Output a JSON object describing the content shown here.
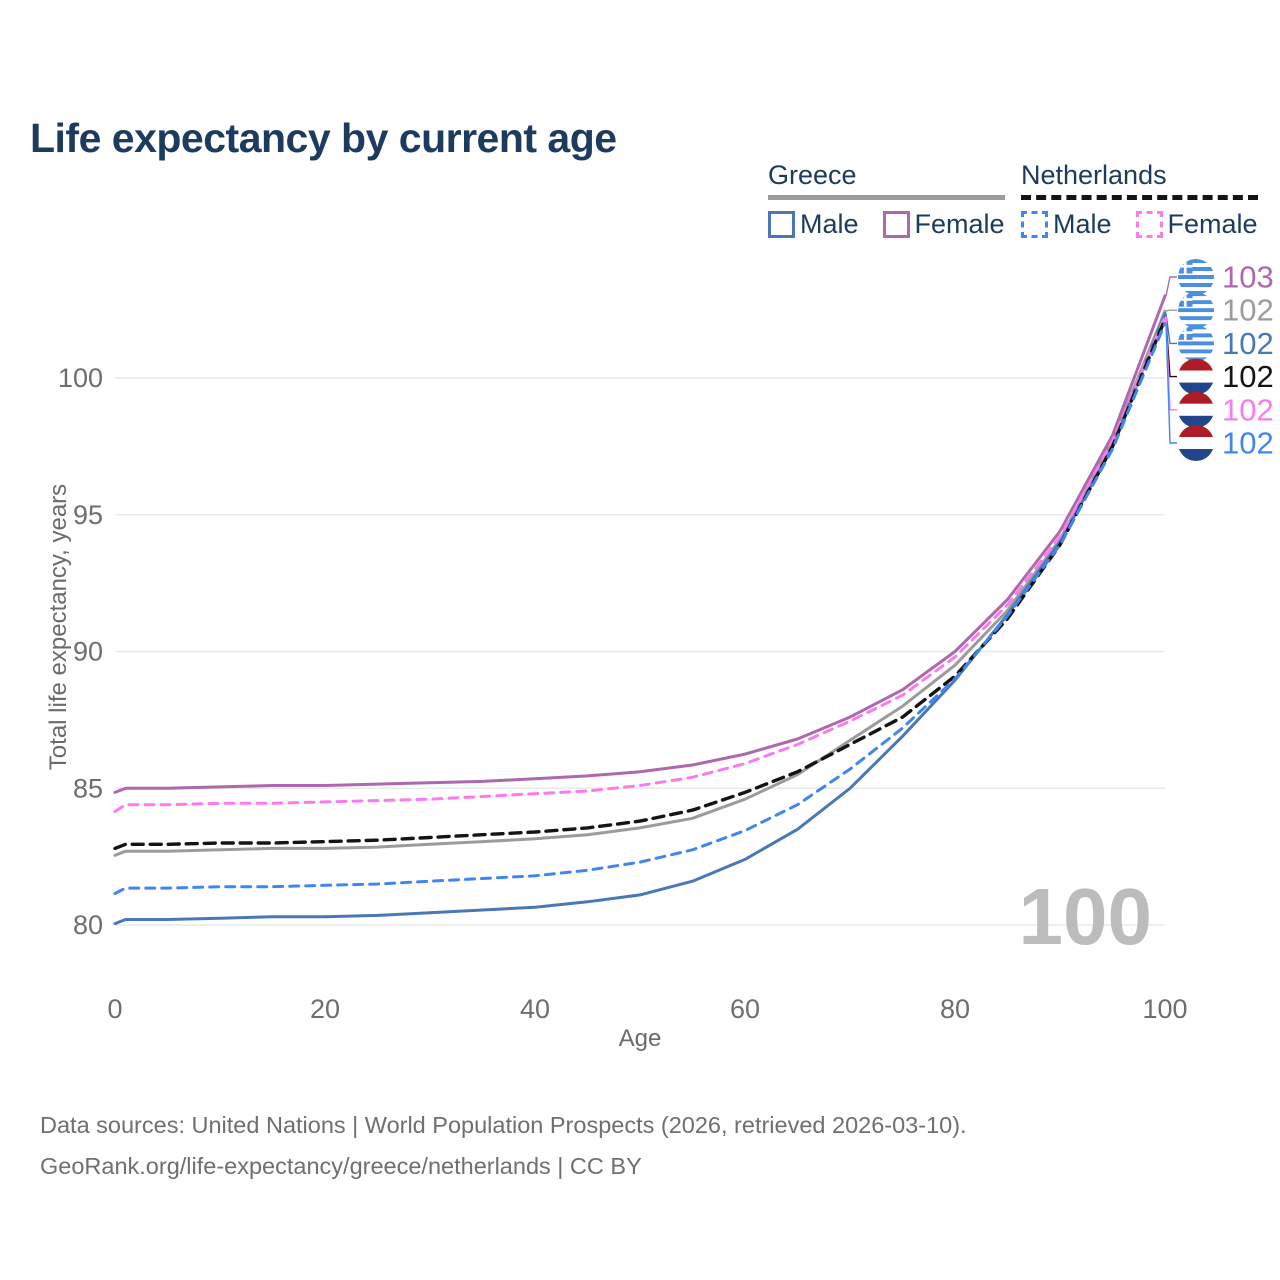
{
  "title": "Life expectancy by current age",
  "legend": {
    "greece": {
      "label": "Greece",
      "male_label": "Male",
      "female_label": "Female"
    },
    "netherlands": {
      "label": "Netherlands",
      "male_label": "Male",
      "female_label": "Female"
    }
  },
  "colors": {
    "navy": "#1d3a5f",
    "axis_text": "#6e6e6e",
    "grid": "#e9e9e9",
    "watermark": "#bcbcbc",
    "greece_male": "#4a78b5",
    "greece_female": "#ad68ae",
    "greece_total": "#9b9b9b",
    "netherlands_male": "#4186f0",
    "netherlands_female": "#fa7bec",
    "netherlands_total": "#141414",
    "flag_greece_blue": "#4a8fe2",
    "flag_nl_red": "#ae1c28",
    "flag_nl_blue": "#21468b"
  },
  "chart_data": {
    "type": "line",
    "title": "Life expectancy by current age",
    "xlabel": "Age",
    "ylabel": "Total life expectancy, years",
    "xlim": [
      0,
      100
    ],
    "ylim": [
      79.5,
      103.5
    ],
    "xticks": [
      0,
      20,
      40,
      60,
      80,
      100
    ],
    "yticks": [
      80,
      85,
      90,
      95,
      100
    ],
    "grid": "horizontal",
    "legend_position": "top-right",
    "watermark": "100",
    "ages": [
      0,
      1,
      5,
      10,
      15,
      20,
      25,
      30,
      35,
      40,
      45,
      50,
      55,
      60,
      65,
      70,
      75,
      80,
      85,
      90,
      95,
      100
    ],
    "series": [
      {
        "id": "greece_total",
        "name": "Greece",
        "country": "Greece",
        "sex": "Both",
        "style": "solid",
        "values": [
          82.55,
          82.7,
          82.7,
          82.75,
          82.8,
          82.8,
          82.85,
          82.95,
          83.05,
          83.15,
          83.3,
          83.55,
          83.9,
          84.6,
          85.5,
          86.75,
          88.0,
          89.5,
          91.5,
          94.1,
          97.7,
          102.45
        ]
      },
      {
        "id": "greece_female",
        "name": "Greece Female",
        "country": "Greece",
        "sex": "Female",
        "style": "solid",
        "values": [
          84.85,
          85.0,
          85.0,
          85.05,
          85.1,
          85.1,
          85.15,
          85.2,
          85.25,
          85.35,
          85.45,
          85.6,
          85.85,
          86.25,
          86.8,
          87.6,
          88.6,
          90.0,
          91.9,
          94.4,
          97.9,
          103.0
        ]
      },
      {
        "id": "greece_male",
        "name": "Greece Male",
        "country": "Greece",
        "sex": "Male",
        "style": "solid",
        "values": [
          80.05,
          80.2,
          80.2,
          80.25,
          80.3,
          80.3,
          80.35,
          80.45,
          80.55,
          80.65,
          80.85,
          81.1,
          81.6,
          82.4,
          83.5,
          85.0,
          86.9,
          88.95,
          91.35,
          94.0,
          97.5,
          102.35
        ]
      },
      {
        "id": "netherlands_female",
        "name": "Netherlands Female",
        "country": "Netherlands",
        "sex": "Female",
        "style": "dashed",
        "values": [
          84.15,
          84.4,
          84.4,
          84.45,
          84.45,
          84.5,
          84.55,
          84.6,
          84.7,
          84.8,
          84.9,
          85.1,
          85.4,
          85.9,
          86.6,
          87.45,
          88.4,
          89.8,
          91.7,
          94.2,
          97.7,
          102.25
        ]
      },
      {
        "id": "netherlands_total",
        "name": "Netherlands",
        "country": "Netherlands",
        "sex": "Both",
        "style": "dashed",
        "values": [
          82.8,
          82.95,
          82.95,
          83.0,
          83.0,
          83.05,
          83.1,
          83.2,
          83.3,
          83.4,
          83.55,
          83.8,
          84.2,
          84.85,
          85.6,
          86.6,
          87.6,
          89.1,
          91.2,
          93.9,
          97.5,
          102.15
        ]
      },
      {
        "id": "netherlands_male",
        "name": "Netherlands Male",
        "country": "Netherlands",
        "sex": "Male",
        "style": "dashed",
        "values": [
          81.15,
          81.35,
          81.35,
          81.4,
          81.4,
          81.45,
          81.5,
          81.6,
          81.7,
          81.8,
          82.0,
          82.3,
          82.75,
          83.45,
          84.4,
          85.7,
          87.2,
          89.0,
          91.3,
          93.9,
          97.4,
          102.0
        ]
      }
    ],
    "end_labels": [
      {
        "series": "greece_female",
        "text": "103",
        "flag": "greece"
      },
      {
        "series": "greece_total",
        "text": "102",
        "flag": "greece"
      },
      {
        "series": "greece_male",
        "text": "102",
        "flag": "greece"
      },
      {
        "series": "netherlands_total",
        "text": "102",
        "flag": "netherlands"
      },
      {
        "series": "netherlands_female",
        "text": "102",
        "flag": "netherlands"
      },
      {
        "series": "netherlands_male",
        "text": "102",
        "flag": "netherlands"
      }
    ]
  },
  "source": {
    "line1": "Data sources: United Nations | World Population Prospects (2026, retrieved 2026-03-10).",
    "line2": "GeoRank.org/life-expectancy/greece/netherlands | CC BY"
  }
}
